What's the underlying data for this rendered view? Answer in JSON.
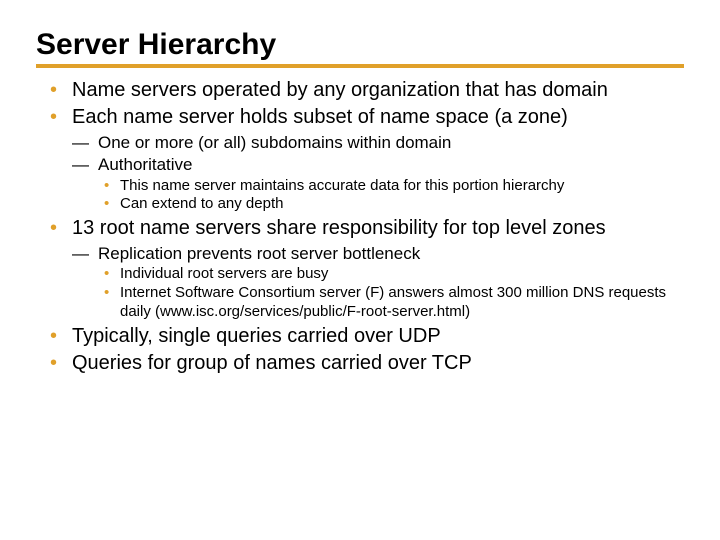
{
  "colors": {
    "accent": "#e0a02a",
    "text": "#000000",
    "background": "#ffffff"
  },
  "title": "Server Hierarchy",
  "bullets": [
    {
      "text": "Name servers operated by any organization that has domain"
    },
    {
      "text": "Each name server holds subset of name space (a zone)",
      "children": [
        {
          "text": "One or more (or all) subdomains within domain"
        },
        {
          "text": "Authoritative",
          "children": [
            {
              "text": "This name server maintains accurate data for this portion hierarchy"
            },
            {
              "text": "Can extend to any depth"
            }
          ]
        }
      ]
    },
    {
      "text": "13 root name servers share responsibility for top level zones",
      "children": [
        {
          "text": "Replication prevents root server bottleneck",
          "children": [
            {
              "text": "Individual root servers are busy"
            },
            {
              "text": "Internet Software Consortium server (F) answers almost 300 million DNS requests daily (www.isc.org/services/public/F-root-server.html)"
            }
          ]
        }
      ]
    },
    {
      "text": "Typically, single queries carried over UDP"
    },
    {
      "text": "Queries for group of names carried over TCP"
    }
  ]
}
